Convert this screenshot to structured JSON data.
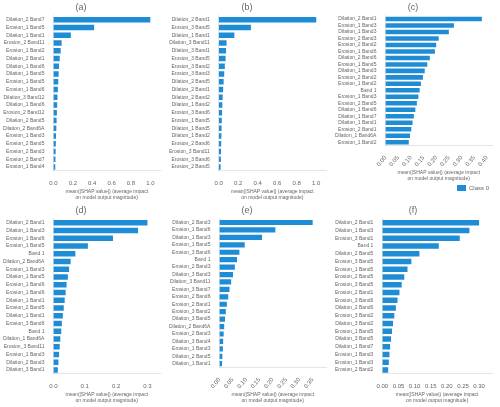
{
  "chart_data": [
    {
      "type": "bar",
      "orientation": "horizontal",
      "title": "(a)",
      "xlabel": "mean(|SHAP value|) (average impact on model output magnitude)",
      "categories": [
        "Dilation_2 Band7",
        "Erosion_1 Band5",
        "Dilation_1 Band1",
        "Erosion_2 Band11",
        "Erosion_1 Band2",
        "Dilation_2 Band1",
        "Dilation_1 Band6",
        "Dilation_1 Band5",
        "Erosion_1 Band5",
        "Erosion_1 Band6",
        "Dilation_3 Band12",
        "Dilation_1 Band6",
        "Erosion_2 Band12",
        "Dilation_2 Band5",
        "Dilation_2 Band6A",
        "Erosion_1 Band3",
        "Erosion_2 Band5",
        "Erosion_2 Band3",
        "Erosion_2 Band7",
        "Erosion_1 Band4"
      ],
      "values": [
        1.0,
        0.42,
        0.18,
        0.085,
        0.075,
        0.065,
        0.058,
        0.054,
        0.05,
        0.046,
        0.042,
        0.039,
        0.036,
        0.033,
        0.03,
        0.027,
        0.025,
        0.023,
        0.021,
        0.019
      ],
      "color": "#1f8dd6",
      "xlim": [
        0,
        1.1
      ],
      "xticks": [
        {
          "value": 0.0,
          "label": "0.0"
        },
        0.2,
        0.4,
        0.6,
        0.8,
        {
          "value": 1.0,
          "label": "1.0"
        }
      ],
      "grid": false
    },
    {
      "type": "bar",
      "orientation": "horizontal",
      "title": "(b)",
      "xlabel": "mean(|SHAP value|) (average impact on model output magnitude)",
      "categories": [
        "Dilation_2 Band1",
        "Erosion_3 Band5",
        "Dilation_1 Band1",
        "Dilation_3 Band11",
        "Dilation_3 Band1",
        "Erosion_3 Band5",
        "Erosion_3 Band2",
        "Erosion_3 Band3",
        "Dilation_2 Band5",
        "Dilation_2 Band1",
        "Dilation_2 Band2",
        "Dilation_1 Band2",
        "Erosion_3 Band6",
        "Erosion_1 Band5",
        "Dilation_1 Band5",
        "Dilation_1 Band2",
        "Erosion_2 Band6",
        "Erosion_3 Band11",
        "Erosion_3 Band6",
        "Erosion_2 Band5"
      ],
      "values": [
        1.0,
        0.33,
        0.16,
        0.08,
        0.075,
        0.07,
        0.062,
        0.056,
        0.05,
        0.045,
        0.04,
        0.037,
        0.034,
        0.031,
        0.029,
        0.027,
        0.025,
        0.023,
        0.021,
        0.019
      ],
      "color": "#1f8dd6",
      "xlim": [
        0,
        1.1
      ],
      "xticks": [
        {
          "value": 0.0,
          "label": "0.0"
        },
        0.2,
        0.4,
        0.6,
        0.8,
        {
          "value": 1.0,
          "label": "1.0"
        }
      ],
      "grid": false
    },
    {
      "type": "bar",
      "orientation": "horizontal",
      "title": "(c)",
      "xlabel": "mean(|SHAP value|) (average impact on model output magnitude)",
      "categories": [
        "Dilation_2 Band1",
        "Erosion_1 Band3",
        "Dilation_1 Band3",
        "Erosion_2 Band3",
        "Erosion_2 Band2",
        "Erosion_1 Band6",
        "Dilation_2 Band6",
        "Erosion_1 Band5",
        "Dilation_1 Band3",
        "Erosion_2 Band2",
        "Erosion_1 Band2",
        "Band 1",
        "Erosion_1 Band3",
        "Erosion_2 Band5",
        "Dilation_1 Band6",
        "Dilation_1 Band7",
        "Dilation_1 Band1",
        "Erosion_2 Band1",
        "Dilation_1 Band6A",
        "Erosion_1 Band2"
      ],
      "series": [
        {
          "name": "Class 0",
          "color": "#1f8dd6",
          "values": [
            0.38,
            0.27,
            0.25,
            0.21,
            0.2,
            0.195,
            0.175,
            0.165,
            0.155,
            0.148,
            0.14,
            0.135,
            0.13,
            0.124,
            0.118,
            0.112,
            0.107,
            0.102,
            0.097,
            0.092
          ]
        }
      ],
      "xlim": [
        0,
        0.42
      ],
      "xticks": [
        {
          "value": 0.0,
          "label": "0.00"
        },
        0.05,
        {
          "value": 0.1,
          "label": "0.10"
        },
        0.15,
        {
          "value": 0.2,
          "label": "0.20"
        },
        0.25,
        {
          "value": 0.3,
          "label": "0.30"
        },
        0.35,
        {
          "value": 0.4,
          "label": "0.40"
        }
      ],
      "legend": "lower right",
      "grid": false
    },
    {
      "type": "bar",
      "orientation": "horizontal",
      "title": "(d)",
      "xlabel": "mean(|SHAP value|) (average impact on model output magnitude)",
      "categories": [
        "Dilation_2 Band1",
        "Dilation_1 Band3",
        "Erosion_1 Band6",
        "Erosion_1 Band5",
        "Band 1",
        "Dilation_2 Band6A",
        "Erosion_1 Band3",
        "Dilation_1 Band5",
        "Erosion_1 Band6",
        "Erosion_1 Band6",
        "Dilation_1 Band1",
        "Erosion_2 Band5",
        "Dilation_1 Band1",
        "Erosion_3 Band6",
        "Band 1",
        "Dilation_1 Band6A",
        "Erosion_3 Band11",
        "Erosion_1 Band3",
        "Dilation_2 Band3",
        "Dilation_3 Band1"
      ],
      "values": [
        0.3,
        0.27,
        0.19,
        0.11,
        0.07,
        0.055,
        0.05,
        0.046,
        0.042,
        0.039,
        0.036,
        0.033,
        0.03,
        0.027,
        0.025,
        0.022,
        0.02,
        0.018,
        0.016,
        0.014
      ],
      "color": "#1f8dd6",
      "xlim": [
        0,
        0.34
      ],
      "xticks": [
        {
          "value": 0.0,
          "label": "0.0"
        },
        0.1,
        0.2,
        0.3
      ],
      "grid": false
    },
    {
      "type": "bar",
      "orientation": "horizontal",
      "title": "(e)",
      "xlabel": "mean(|SHAP value|) (average impact on model output magnitude)",
      "categories": [
        "Dilation_2 Band3",
        "Erosion_1 Band6",
        "Dilation_1 Band3",
        "Erosion_1 Band5",
        "Erosion_3 Band6",
        "Band 1",
        "Erosion_2 Band3",
        "Dilation_3 Band3",
        "Dilation_3 Band11",
        "Erosion_3 Band7",
        "Erosion_2 Band6",
        "Erosion_2 Band1",
        "Erosion_3 Band2",
        "Dilation_3 Band5",
        "Dilation_2 Band6A",
        "Erosion_2 Band3",
        "Dilation_3 Band4",
        "Erosion_1 Band3",
        "Dilation_2 Band5",
        "Dilation_1 Band1"
      ],
      "values": [
        0.35,
        0.21,
        0.16,
        0.095,
        0.075,
        0.066,
        0.058,
        0.051,
        0.044,
        0.038,
        0.033,
        0.028,
        0.024,
        0.021,
        0.018,
        0.016,
        0.014,
        0.013,
        0.011,
        0.01
      ],
      "color": "#1f8dd6",
      "xlim": [
        0,
        0.4
      ],
      "xticks": [
        {
          "value": 0.0,
          "label": "0.00"
        },
        0.05,
        {
          "value": 0.1,
          "label": "0.10"
        },
        0.15,
        {
          "value": 0.2,
          "label": "0.20"
        },
        0.25,
        {
          "value": 0.3,
          "label": "0.30"
        },
        0.35
      ],
      "grid": false
    },
    {
      "type": "bar",
      "orientation": "horizontal",
      "title": "(f)",
      "xlabel": "mean(|SHAP value|) (average impact on model output magnitude)",
      "categories": [
        "Dilation_2 Band1",
        "Dilation_1 Band3",
        "Erosion_3 Band1",
        "Band 1",
        "Dilation_2 Band5",
        "Erosion_3 Band5",
        "Erosion_1 Band5",
        "Erosion_2 Band5",
        "Erosion_3 Band5",
        "Erosion_2 Band1",
        "Erosion_3 Band6",
        "Dilation_2 Band6",
        "Erosion_3 Band2",
        "Dilation_3 Band2",
        "Erosion_1 Band5",
        "Dilation_3 Band5",
        "Dilation_1 Band7",
        "Erosion_1 Band3",
        "Erosion_1 Band3",
        "Erosion_2 Band2"
      ],
      "values": [
        0.3,
        0.27,
        0.24,
        0.175,
        0.115,
        0.09,
        0.078,
        0.068,
        0.06,
        0.053,
        0.047,
        0.042,
        0.037,
        0.033,
        0.03,
        0.027,
        0.024,
        0.022,
        0.02,
        0.018
      ],
      "color": "#1f8dd6",
      "xlim": [
        0,
        0.34
      ],
      "xticks": [
        {
          "value": 0.0,
          "label": "0.00"
        },
        0.05,
        {
          "value": 0.1,
          "label": "0.10"
        },
        0.15,
        {
          "value": 0.2,
          "label": "0.20"
        },
        0.25,
        {
          "value": 0.3,
          "label": "0.30"
        }
      ],
      "grid": false
    }
  ]
}
